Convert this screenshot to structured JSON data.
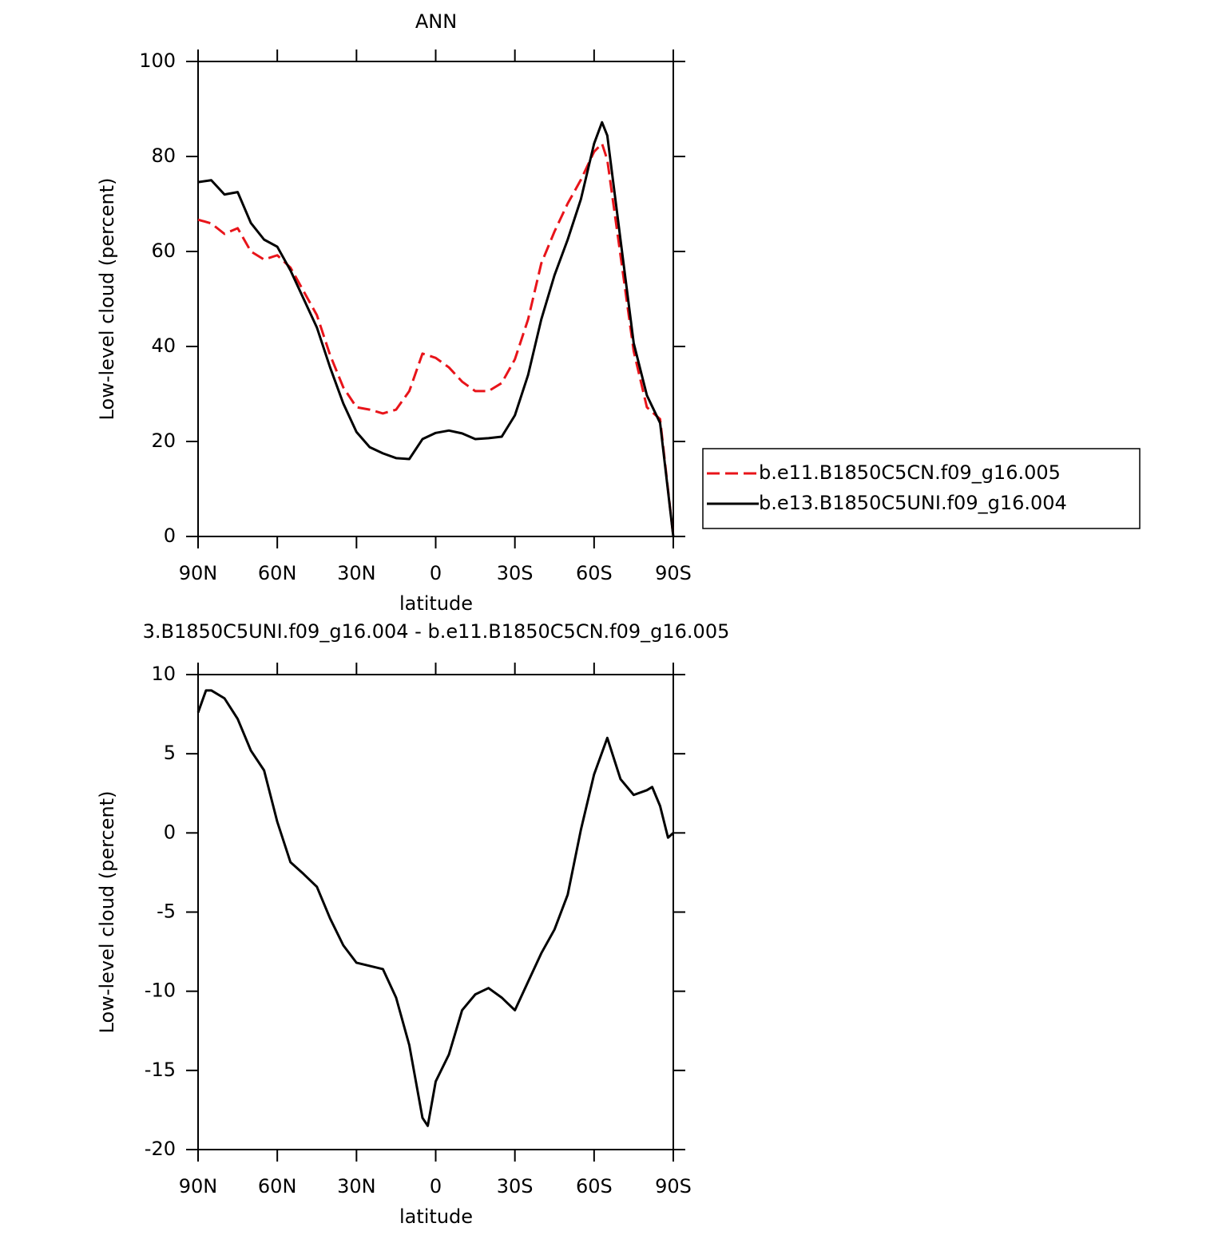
{
  "chart_data": [
    {
      "type": "line",
      "title": "ANN",
      "xlabel": "latitude",
      "ylabel": "Low-level cloud (percent)",
      "x": [
        90,
        85,
        80,
        75,
        70,
        65,
        60,
        55,
        50,
        45,
        40,
        35,
        30,
        25,
        20,
        15,
        10,
        5,
        0,
        -5,
        -10,
        -15,
        -20,
        -25,
        -30,
        -35,
        -40,
        -45,
        -50,
        -55,
        -60,
        -63,
        -65,
        -70,
        -75,
        -80,
        -85,
        -90
      ],
      "series": [
        {
          "name": "b.e11.B1850C5CN.f09_g16.005",
          "color": "#e8141a",
          "dash": true,
          "values": [
            66.7,
            65.9,
            63.7,
            64.9,
            60,
            58.3,
            59.2,
            56.6,
            51.6,
            46.6,
            38.2,
            31.4,
            27.2,
            26.7,
            25.9,
            26.7,
            30.6,
            38.5,
            37.6,
            35.6,
            32.6,
            30.6,
            30.6,
            32.3,
            37.3,
            45.7,
            57.5,
            64.2,
            70.1,
            75.1,
            81,
            82.7,
            79.3,
            59.2,
            39,
            27.2,
            24.7,
            0
          ]
        },
        {
          "name": "b.e13.B1850C5UNI.f09_g16.004",
          "color": "#000000",
          "dash": false,
          "values": [
            74.6,
            75,
            72,
            72.5,
            66,
            62.5,
            61,
            56,
            50,
            44,
            35.6,
            28,
            22,
            18.8,
            17.5,
            16.5,
            16.3,
            20.5,
            21.8,
            22.3,
            21.7,
            20.5,
            20.7,
            21,
            25.5,
            34,
            45.7,
            55,
            62.5,
            71,
            82.7,
            87.2,
            84.4,
            62.5,
            40.7,
            29.7,
            23.9,
            0
          ]
        }
      ],
      "xlim": [
        90,
        -90
      ],
      "xticks": [
        {
          "value": 90,
          "label": "90N"
        },
        {
          "value": 60,
          "label": "60N"
        },
        {
          "value": 30,
          "label": "30N"
        },
        0,
        {
          "value": -30,
          "label": "30S"
        },
        {
          "value": -60,
          "label": "60S"
        },
        {
          "value": -90,
          "label": "90S"
        }
      ],
      "ylim": [
        0,
        100
      ],
      "yticks": [
        0,
        20,
        40,
        60,
        80,
        100
      ],
      "legend": "right"
    },
    {
      "type": "line",
      "title": "3.B1850C5UNI.f09_g16.004 - b.e11.B1850C5CN.f09_g16.005",
      "xlabel": "latitude",
      "ylabel": "Low-level cloud (percent)",
      "x": [
        90,
        87,
        85,
        80,
        75,
        70,
        65,
        60,
        55,
        50,
        45,
        40,
        35,
        30,
        25,
        20,
        15,
        10,
        5,
        3,
        0,
        -5,
        -10,
        -15,
        -20,
        -25,
        -30,
        -35,
        -40,
        -45,
        -50,
        -55,
        -60,
        -65,
        -70,
        -75,
        -80,
        -82,
        -85,
        -88,
        -90
      ],
      "series": [
        {
          "color": "#000000",
          "dash": false,
          "values": [
            7.6,
            9,
            9,
            8.5,
            7.2,
            5.2,
            3.95,
            0.7,
            -1.85,
            -2.6,
            -3.4,
            -5.4,
            -7.1,
            -8.2,
            -8.4,
            -8.6,
            -10.4,
            -13.4,
            -18,
            -18.5,
            -15.7,
            -14,
            -11.2,
            -10.2,
            -9.8,
            -10.4,
            -11.2,
            -9.4,
            -7.6,
            -6.1,
            -3.9,
            0.2,
            3.7,
            6,
            3.4,
            2.4,
            2.7,
            2.9,
            1.7,
            -0.3,
            0
          ]
        }
      ],
      "xlim": [
        90,
        -90
      ],
      "xticks": [
        {
          "value": 90,
          "label": "90N"
        },
        {
          "value": 60,
          "label": "60N"
        },
        {
          "value": 30,
          "label": "30N"
        },
        0,
        {
          "value": -30,
          "label": "30S"
        },
        {
          "value": -60,
          "label": "60S"
        },
        {
          "value": -90,
          "label": "90S"
        }
      ],
      "ylim": [
        -20,
        10
      ],
      "yticks": [
        -20,
        -15,
        -10,
        -5,
        0,
        5,
        10
      ]
    }
  ]
}
